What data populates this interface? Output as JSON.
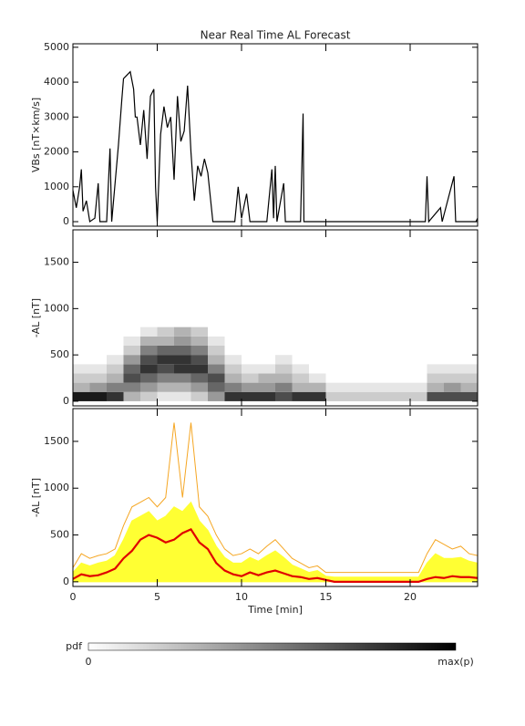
{
  "title": "Near Real Time AL Forecast",
  "chart_data": [
    {
      "type": "line",
      "ylabel": "VBs [nT×km/s]",
      "color": "#000000",
      "x": [
        0,
        0.2,
        0.4,
        0.5,
        0.6,
        0.8,
        1,
        1.3,
        1.5,
        1.6,
        2,
        2.2,
        2.3,
        2.5,
        2.7,
        2.9,
        3,
        3.2,
        3.4,
        3.6,
        3.7,
        3.8,
        4,
        4.2,
        4.4,
        4.6,
        4.8,
        4.9,
        5,
        5.2,
        5.4,
        5.6,
        5.8,
        6,
        6.2,
        6.4,
        6.6,
        6.8,
        7,
        7.2,
        7.4,
        7.6,
        7.8,
        8,
        8.3,
        9,
        9.6,
        9.8,
        10,
        10.3,
        10.5,
        11.5,
        11.8,
        11.9,
        12,
        12.1,
        12.5,
        12.6,
        13.5,
        13.65,
        13.7,
        20.9,
        21,
        21.1,
        21.8,
        21.9,
        22.6,
        22.7,
        23.9,
        24
      ],
      "values": [
        900,
        400,
        1000,
        1500,
        300,
        600,
        0,
        100,
        1100,
        0,
        0,
        2100,
        0,
        1100,
        2200,
        3500,
        4100,
        4200,
        4300,
        3800,
        3000,
        3000,
        2200,
        3200,
        1800,
        3600,
        3800,
        1000,
        0,
        2500,
        3300,
        2700,
        3000,
        1200,
        3600,
        2300,
        2600,
        3900,
        2000,
        600,
        1600,
        1300,
        1800,
        1400,
        0,
        0,
        0,
        1000,
        100,
        800,
        0,
        0,
        1500,
        100,
        1600,
        0,
        1100,
        0,
        0,
        3100,
        0,
        0,
        1300,
        0,
        400,
        0,
        1300,
        0,
        0,
        100
      ],
      "xlim": [
        0,
        24
      ],
      "xticks": [
        0,
        5,
        10,
        15,
        20
      ],
      "ylim": [
        -130,
        5100
      ],
      "yticks": [
        0,
        1000,
        2000,
        3000,
        4000,
        5000
      ]
    },
    {
      "type": "heatmap",
      "ylabel": "-AL [nT]",
      "x_bins": [
        0,
        1,
        2,
        3,
        4,
        5,
        6,
        7,
        8,
        9,
        10,
        11,
        12,
        13,
        14,
        15,
        16,
        17,
        18,
        19,
        20,
        21,
        22,
        23,
        24
      ],
      "y_bins": [
        0,
        100,
        200,
        300,
        400,
        500,
        600,
        700,
        800
      ],
      "density": [
        [
          0.9,
          0.3,
          0.2,
          0.1,
          0,
          0,
          0,
          0
        ],
        [
          0.9,
          0.4,
          0.2,
          0.1,
          0,
          0,
          0,
          0
        ],
        [
          0.8,
          0.5,
          0.3,
          0.2,
          0.1,
          0,
          0,
          0
        ],
        [
          0.3,
          0.5,
          0.7,
          0.6,
          0.4,
          0.2,
          0.1,
          0
        ],
        [
          0.2,
          0.4,
          0.6,
          0.8,
          0.7,
          0.5,
          0.3,
          0.1
        ],
        [
          0.1,
          0.3,
          0.5,
          0.7,
          0.8,
          0.6,
          0.3,
          0.2
        ],
        [
          0.1,
          0.3,
          0.5,
          0.8,
          0.8,
          0.6,
          0.4,
          0.3
        ],
        [
          0.2,
          0.4,
          0.6,
          0.8,
          0.7,
          0.5,
          0.3,
          0.2
        ],
        [
          0.4,
          0.6,
          0.7,
          0.5,
          0.3,
          0.2,
          0.1,
          0
        ],
        [
          0.8,
          0.5,
          0.3,
          0.2,
          0.1,
          0,
          0,
          0
        ],
        [
          0.8,
          0.4,
          0.2,
          0.1,
          0,
          0,
          0,
          0
        ],
        [
          0.8,
          0.4,
          0.3,
          0.1,
          0,
          0,
          0,
          0
        ],
        [
          0.7,
          0.5,
          0.3,
          0.2,
          0.1,
          0,
          0,
          0
        ],
        [
          0.8,
          0.3,
          0.2,
          0.1,
          0,
          0,
          0,
          0
        ],
        [
          0.8,
          0.3,
          0.1,
          0,
          0,
          0,
          0,
          0
        ],
        [
          0.2,
          0.1,
          0,
          0,
          0,
          0,
          0,
          0
        ],
        [
          0.2,
          0.1,
          0,
          0,
          0,
          0,
          0,
          0
        ],
        [
          0.2,
          0.1,
          0,
          0,
          0,
          0,
          0,
          0
        ],
        [
          0.2,
          0.1,
          0,
          0,
          0,
          0,
          0,
          0
        ],
        [
          0.2,
          0.1,
          0,
          0,
          0,
          0,
          0,
          0
        ],
        [
          0.2,
          0.1,
          0,
          0,
          0,
          0,
          0,
          0
        ],
        [
          0.7,
          0.3,
          0.2,
          0.1,
          0,
          0,
          0,
          0
        ],
        [
          0.7,
          0.4,
          0.2,
          0.1,
          0,
          0,
          0,
          0
        ],
        [
          0.7,
          0.3,
          0.2,
          0.1,
          0,
          0,
          0,
          0
        ]
      ],
      "xlim": [
        0,
        24
      ],
      "xticks": [
        0,
        5,
        10,
        15,
        20
      ],
      "ylim": [
        -50,
        1850
      ],
      "yticks": [
        0,
        500,
        1000,
        1500
      ]
    },
    {
      "type": "band",
      "ylabel": "-AL [nT]",
      "xlabel": "Time [min]",
      "x": [
        0,
        0.5,
        1,
        1.5,
        2,
        2.5,
        3,
        3.5,
        4,
        4.5,
        5,
        5.5,
        6,
        6.5,
        7,
        7.5,
        8,
        8.5,
        9,
        9.5,
        10,
        10.5,
        11,
        11.5,
        12,
        12.5,
        13,
        13.5,
        14,
        14.5,
        15,
        15.5,
        16,
        16.5,
        17,
        17.5,
        18,
        18.5,
        19,
        19.5,
        20,
        20.5,
        21,
        21.5,
        22,
        22.5,
        23,
        23.5,
        24
      ],
      "series": [
        {
          "color": "#ffff33",
          "fill": true,
          "values": [
            100,
            200,
            170,
            200,
            220,
            280,
            450,
            650,
            700,
            750,
            650,
            700,
            800,
            750,
            850,
            650,
            550,
            380,
            260,
            200,
            200,
            260,
            220,
            280,
            330,
            260,
            180,
            140,
            100,
            120,
            60,
            50,
            50,
            50,
            50,
            50,
            50,
            50,
            50,
            50,
            50,
            50,
            200,
            300,
            250,
            250,
            260,
            220,
            200
          ]
        },
        {
          "color": "#f5a623",
          "fill": false,
          "values": [
            150,
            300,
            250,
            280,
            300,
            350,
            600,
            800,
            850,
            900,
            800,
            900,
            1700,
            900,
            1700,
            800,
            700,
            500,
            350,
            280,
            300,
            350,
            300,
            380,
            450,
            350,
            250,
            200,
            150,
            170,
            100,
            100,
            100,
            100,
            100,
            100,
            100,
            100,
            100,
            100,
            100,
            100,
            300,
            450,
            400,
            350,
            380,
            300,
            280
          ]
        },
        {
          "color": "#e00000",
          "fill": false,
          "values": [
            30,
            80,
            60,
            70,
            100,
            140,
            250,
            330,
            450,
            500,
            470,
            420,
            450,
            520,
            560,
            420,
            350,
            200,
            120,
            80,
            60,
            100,
            70,
            100,
            120,
            90,
            60,
            50,
            30,
            40,
            20,
            0,
            0,
            0,
            0,
            0,
            0,
            0,
            0,
            0,
            0,
            0,
            30,
            50,
            40,
            60,
            50,
            50,
            40
          ]
        }
      ],
      "xlim": [
        0,
        24
      ],
      "xticks": [
        0,
        5,
        10,
        15,
        20
      ],
      "ylim": [
        -50,
        1850
      ],
      "yticks": [
        0,
        500,
        1000,
        1500
      ]
    }
  ],
  "colorbar": {
    "label": "pdf",
    "min_label": "0",
    "max_label": "max(p)"
  }
}
